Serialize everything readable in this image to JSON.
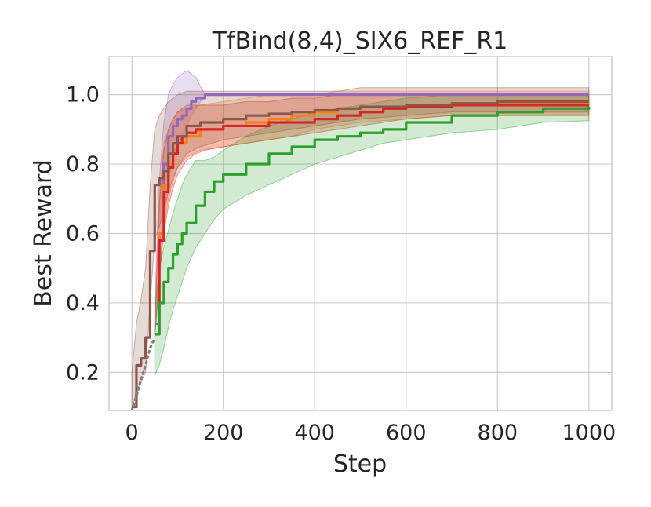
{
  "chart_data": {
    "type": "line",
    "title": "TfBind(8,4)_SIX6_REF_R1",
    "xlabel": "Step",
    "ylabel": "Best Reward",
    "xlim": [
      -50,
      1050
    ],
    "ylim": [
      0.09,
      1.11
    ],
    "xticks": [
      0,
      200,
      400,
      600,
      800,
      1000
    ],
    "yticks": [
      0.2,
      0.4,
      0.6,
      0.8,
      1.0
    ],
    "xtick_labels": [
      "0",
      "200",
      "400",
      "600",
      "800",
      "1000"
    ],
    "ytick_labels": [
      "0.2",
      "0.4",
      "0.6",
      "0.8",
      "1.0"
    ],
    "grid": true,
    "legend": "none",
    "series": [
      {
        "color": "#9467bd",
        "style": "solid",
        "x": [
          50,
          60,
          70,
          80,
          90,
          100,
          110,
          120,
          130,
          140,
          160,
          200,
          400,
          600,
          800,
          1000
        ],
        "y": [
          0.34,
          0.6,
          0.8,
          0.88,
          0.91,
          0.93,
          0.94,
          0.96,
          0.98,
          0.99,
          1.0,
          1.0,
          1.0,
          1.0,
          1.0,
          1.0
        ],
        "lower": [
          0.3,
          0.45,
          0.65,
          0.76,
          0.81,
          0.85,
          0.88,
          0.91,
          0.94,
          0.96,
          1.0,
          1.0,
          1.0,
          1.0,
          1.0,
          1.0
        ],
        "upper": [
          0.4,
          0.75,
          0.92,
          1.0,
          1.03,
          1.05,
          1.06,
          1.07,
          1.06,
          1.05,
          1.0,
          1.0,
          1.0,
          1.0,
          1.0,
          1.0
        ]
      },
      {
        "color": "#ff7f0e",
        "style": "solid",
        "x": [
          50,
          60,
          70,
          80,
          90,
          100,
          120,
          150,
          200,
          250,
          300,
          350,
          400,
          450,
          500,
          600,
          700,
          800,
          900,
          1000
        ],
        "y": [
          0.31,
          0.6,
          0.74,
          0.8,
          0.84,
          0.86,
          0.88,
          0.9,
          0.91,
          0.92,
          0.93,
          0.94,
          0.95,
          0.96,
          0.965,
          0.97,
          0.975,
          0.975,
          0.975,
          0.975
        ],
        "lower": [
          0.3,
          0.5,
          0.62,
          0.7,
          0.75,
          0.79,
          0.82,
          0.84,
          0.85,
          0.86,
          0.87,
          0.88,
          0.9,
          0.91,
          0.92,
          0.93,
          0.94,
          0.94,
          0.94,
          0.94
        ],
        "upper": [
          0.33,
          0.7,
          0.86,
          0.9,
          0.93,
          0.95,
          0.96,
          0.97,
          0.98,
          0.99,
          1.0,
          1.0,
          1.0,
          1.01,
          1.01,
          1.01,
          1.01,
          1.01,
          1.01,
          1.01
        ]
      },
      {
        "color": "#d62728",
        "style": "solid",
        "x": [
          50,
          60,
          70,
          80,
          90,
          100,
          110,
          120,
          140,
          160,
          200,
          250,
          300,
          350,
          400,
          450,
          500,
          550,
          600,
          700,
          800,
          900,
          1000
        ],
        "y": [
          0.31,
          0.58,
          0.72,
          0.79,
          0.83,
          0.86,
          0.88,
          0.89,
          0.9,
          0.9,
          0.91,
          0.91,
          0.92,
          0.92,
          0.93,
          0.94,
          0.95,
          0.96,
          0.965,
          0.97,
          0.97,
          0.97,
          0.97
        ],
        "lower": [
          0.3,
          0.48,
          0.6,
          0.68,
          0.73,
          0.77,
          0.79,
          0.81,
          0.83,
          0.84,
          0.85,
          0.86,
          0.87,
          0.88,
          0.89,
          0.9,
          0.91,
          0.92,
          0.93,
          0.94,
          0.94,
          0.94,
          0.94
        ],
        "upper": [
          0.33,
          0.68,
          0.84,
          0.9,
          0.93,
          0.95,
          0.96,
          0.97,
          0.97,
          0.97,
          0.97,
          0.98,
          0.98,
          0.99,
          0.99,
          1.0,
          1.0,
          1.0,
          1.0,
          1.0,
          1.0,
          1.0,
          1.0
        ]
      },
      {
        "color": "#2ca02c",
        "style": "solid",
        "x": [
          50,
          60,
          70,
          80,
          90,
          100,
          110,
          120,
          140,
          160,
          180,
          200,
          250,
          300,
          350,
          400,
          450,
          500,
          550,
          600,
          700,
          800,
          900,
          1000
        ],
        "y": [
          0.31,
          0.4,
          0.46,
          0.5,
          0.54,
          0.57,
          0.6,
          0.63,
          0.68,
          0.72,
          0.75,
          0.77,
          0.8,
          0.83,
          0.85,
          0.87,
          0.88,
          0.89,
          0.9,
          0.92,
          0.94,
          0.95,
          0.96,
          0.965
        ],
        "lower": [
          0.19,
          0.22,
          0.27,
          0.33,
          0.38,
          0.42,
          0.46,
          0.5,
          0.56,
          0.6,
          0.64,
          0.67,
          0.71,
          0.74,
          0.77,
          0.8,
          0.82,
          0.84,
          0.86,
          0.87,
          0.89,
          0.9,
          0.92,
          0.925
        ],
        "upper": [
          0.38,
          0.5,
          0.56,
          0.61,
          0.66,
          0.7,
          0.74,
          0.77,
          0.81,
          0.81,
          0.82,
          0.84,
          0.88,
          0.91,
          0.93,
          0.95,
          0.96,
          0.97,
          0.98,
          0.99,
          1.0,
          1.0,
          1.0,
          1.0
        ]
      },
      {
        "color": "#8c564b",
        "style": "solid",
        "x": [
          0,
          10,
          20,
          30,
          40,
          50,
          60,
          70,
          80,
          90,
          100,
          120,
          150,
          200,
          250,
          300,
          350,
          400,
          450,
          500,
          600,
          700,
          800,
          900,
          1000
        ],
        "y": [
          0.1,
          0.22,
          0.24,
          0.3,
          0.55,
          0.74,
          0.76,
          0.78,
          0.83,
          0.86,
          0.88,
          0.91,
          0.92,
          0.93,
          0.94,
          0.945,
          0.95,
          0.955,
          0.96,
          0.965,
          0.97,
          0.975,
          0.98,
          0.98,
          0.98
        ],
        "lower": [
          0.09,
          0.15,
          0.17,
          0.2,
          0.4,
          0.58,
          0.62,
          0.66,
          0.72,
          0.76,
          0.79,
          0.83,
          0.85,
          0.87,
          0.88,
          0.89,
          0.9,
          0.91,
          0.92,
          0.93,
          0.94,
          0.95,
          0.95,
          0.95,
          0.95
        ],
        "upper": [
          0.2,
          0.34,
          0.41,
          0.5,
          0.74,
          0.9,
          0.94,
          0.96,
          0.98,
          0.99,
          1.0,
          1.01,
          1.01,
          1.01,
          1.01,
          1.01,
          1.01,
          1.01,
          1.01,
          1.02,
          1.02,
          1.02,
          1.02,
          1.02,
          1.02
        ]
      },
      {
        "color": "#7f7f7f",
        "style": "dotted",
        "x": [
          0,
          10,
          20,
          30,
          40,
          50
        ],
        "y": [
          0.09,
          0.13,
          0.18,
          0.22,
          0.27,
          0.3
        ]
      }
    ]
  }
}
